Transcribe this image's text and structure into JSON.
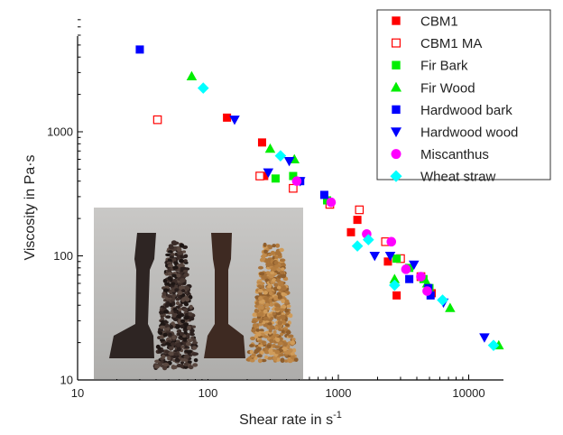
{
  "chart_data": {
    "type": "scatter",
    "title": "",
    "xlabel": "Shear rate in s",
    "xlabel_sup": "-1",
    "ylabel": "Viscosity in Pa·s",
    "xscale": "log",
    "yscale": "log",
    "xlim": [
      10,
      18000
    ],
    "ylim": [
      10,
      8000
    ],
    "x_ticks": [
      {
        "value": 10,
        "label": "10"
      },
      {
        "value": 100,
        "label": "100"
      },
      {
        "value": 1000,
        "label": "1000"
      },
      {
        "value": 10000,
        "label": "10000"
      }
    ],
    "y_ticks": [
      {
        "value": 10,
        "label": "10"
      },
      {
        "value": 100,
        "label": "100"
      },
      {
        "value": 1000,
        "label": "1000"
      }
    ],
    "grid": false,
    "legend_position": "top-right",
    "inset_image": "photo of two dark tensile test bars beside dark and light granulate pellets",
    "series": [
      {
        "name": "CBM1",
        "marker": "square",
        "filled": true,
        "color": "#ff0000",
        "points": [
          [
            140,
            1300
          ],
          [
            260,
            820
          ],
          [
            270,
            440
          ],
          [
            1250,
            155
          ],
          [
            1400,
            195
          ],
          [
            2400,
            90
          ],
          [
            2800,
            48
          ],
          [
            5200,
            50
          ]
        ]
      },
      {
        "name": "CBM1 MA",
        "marker": "square",
        "filled": false,
        "color": "#ff0000",
        "points": [
          [
            41,
            1250
          ],
          [
            250,
            440
          ],
          [
            450,
            350
          ],
          [
            860,
            260
          ],
          [
            1450,
            235
          ],
          [
            2300,
            130
          ],
          [
            3000,
            95
          ],
          [
            4300,
            68
          ]
        ]
      },
      {
        "name": "Fir Bark",
        "marker": "square",
        "filled": true,
        "color": "#00ee00",
        "points": [
          [
            330,
            420
          ],
          [
            450,
            440
          ],
          [
            820,
            280
          ],
          [
            2800,
            95
          ],
          [
            3500,
            80
          ],
          [
            4500,
            65
          ],
          [
            5000,
            55
          ]
        ]
      },
      {
        "name": "Fir Wood",
        "marker": "triangle-up",
        "filled": true,
        "color": "#00ee00",
        "points": [
          [
            75,
            2800
          ],
          [
            300,
            730
          ],
          [
            460,
            600
          ],
          [
            2700,
            65
          ],
          [
            4800,
            60
          ],
          [
            7200,
            38
          ],
          [
            17000,
            19
          ]
        ]
      },
      {
        "name": "Hardwood bark",
        "marker": "square",
        "filled": true,
        "color": "#0000ff",
        "points": [
          [
            30,
            4600
          ],
          [
            510,
            400
          ],
          [
            780,
            310
          ],
          [
            3500,
            65
          ],
          [
            4900,
            55
          ],
          [
            5100,
            48
          ]
        ]
      },
      {
        "name": "Hardwood wood",
        "marker": "triangle-down",
        "filled": true,
        "color": "#0000ff",
        "points": [
          [
            160,
            1250
          ],
          [
            290,
            470
          ],
          [
            420,
            580
          ],
          [
            510,
            400
          ],
          [
            1900,
            100
          ],
          [
            2500,
            100
          ],
          [
            3800,
            85
          ],
          [
            6400,
            42
          ],
          [
            13200,
            22
          ]
        ]
      },
      {
        "name": "Miscanthus",
        "marker": "circle",
        "filled": true,
        "color": "#ff00ff",
        "points": [
          [
            480,
            400
          ],
          [
            880,
            270
          ],
          [
            1650,
            150
          ],
          [
            2550,
            130
          ],
          [
            3300,
            78
          ],
          [
            4300,
            68
          ],
          [
            4800,
            52
          ]
        ]
      },
      {
        "name": "Wheat straw",
        "marker": "diamond",
        "filled": true,
        "color": "#00ffff",
        "points": [
          [
            92,
            2250
          ],
          [
            360,
            640
          ],
          [
            1400,
            120
          ],
          [
            1700,
            135
          ],
          [
            2700,
            58
          ],
          [
            6300,
            44
          ],
          [
            15500,
            19
          ]
        ]
      }
    ]
  }
}
